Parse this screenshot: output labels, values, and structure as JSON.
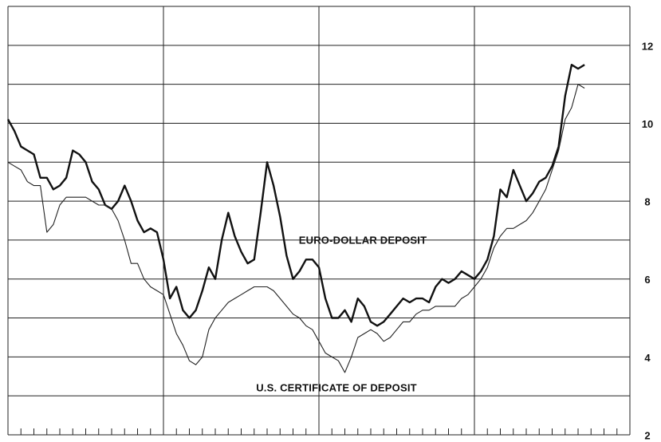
{
  "chart_data": {
    "type": "line",
    "x": [
      0,
      0.5,
      1,
      1.5,
      2,
      2.5,
      3,
      3.5,
      4,
      4.5,
      5,
      5.5,
      6,
      6.5,
      7,
      7.5,
      8,
      8.5,
      9,
      9.5,
      10,
      10.5,
      11,
      11.5,
      12,
      12.5,
      13,
      13.5,
      14,
      14.5,
      15,
      15.5,
      16,
      16.5,
      17,
      17.5,
      18,
      18.5,
      19,
      19.5,
      20,
      20.5,
      21,
      21.5,
      22,
      22.5,
      23,
      23.5,
      24,
      24.5,
      25,
      25.5,
      26,
      26.5,
      27,
      27.5,
      28,
      28.5,
      29,
      29.5,
      30,
      30.5,
      31,
      31.5,
      32,
      32.5,
      33,
      33.5,
      34,
      34.5,
      35,
      35.5,
      36,
      36.5,
      37,
      37.5,
      38,
      38.5,
      39,
      39.5,
      40,
      40.5,
      41,
      41.5,
      42,
      42.5,
      43,
      43.5,
      44,
      44.5
    ],
    "series": [
      {
        "name": "EURO-DOLLAR DEPOSIT",
        "color": "#111111",
        "width": 2.4,
        "values": [
          10.1,
          9.8,
          9.4,
          9.3,
          9.2,
          8.6,
          8.6,
          8.3,
          8.4,
          8.6,
          9.3,
          9.2,
          9.0,
          8.5,
          8.3,
          7.9,
          7.8,
          8.0,
          8.4,
          8.0,
          7.5,
          7.2,
          7.3,
          7.2,
          6.5,
          5.5,
          5.8,
          5.2,
          5.0,
          5.2,
          5.7,
          6.3,
          6.0,
          7.0,
          7.7,
          7.1,
          6.7,
          6.4,
          6.5,
          7.7,
          9.0,
          8.4,
          7.6,
          6.6,
          6.0,
          6.2,
          6.5,
          6.5,
          6.3,
          5.5,
          5.0,
          5.0,
          5.2,
          4.9,
          5.5,
          5.3,
          4.9,
          4.8,
          4.9,
          5.1,
          5.3,
          5.5,
          5.4,
          5.5,
          5.5,
          5.4,
          5.8,
          6.0,
          5.9,
          6.0,
          6.2,
          6.1,
          6.0,
          6.2,
          6.5,
          7.1,
          8.3,
          8.1,
          8.8,
          8.4,
          8.0,
          8.2,
          8.5,
          8.6,
          8.9,
          9.4,
          10.7,
          11.5,
          11.4,
          11.5
        ]
      },
      {
        "name": "U.S. CERTIFICATE OF DEPOSIT",
        "color": "#222222",
        "width": 1.1,
        "values": [
          9.0,
          8.9,
          8.8,
          8.5,
          8.4,
          8.4,
          7.2,
          7.4,
          7.9,
          8.1,
          8.1,
          8.1,
          8.1,
          8.0,
          7.9,
          7.9,
          7.8,
          7.5,
          7.0,
          6.4,
          6.4,
          6.0,
          5.8,
          5.7,
          5.6,
          5.1,
          4.6,
          4.3,
          3.9,
          3.8,
          4.0,
          4.7,
          5.0,
          5.2,
          5.4,
          5.5,
          5.6,
          5.7,
          5.8,
          5.8,
          5.8,
          5.7,
          5.5,
          5.3,
          5.1,
          5.0,
          4.8,
          4.7,
          4.4,
          4.1,
          4.0,
          3.9,
          3.6,
          4.0,
          4.5,
          4.6,
          4.7,
          4.6,
          4.4,
          4.5,
          4.7,
          4.9,
          4.9,
          5.1,
          5.2,
          5.2,
          5.3,
          5.3,
          5.3,
          5.3,
          5.5,
          5.6,
          5.8,
          6.0,
          6.3,
          6.8,
          7.1,
          7.3,
          7.3,
          7.4,
          7.5,
          7.7,
          8.0,
          8.3,
          8.8,
          9.3,
          10.1,
          10.4,
          11.0,
          10.9
        ]
      }
    ],
    "xlim": [
      0,
      48
    ],
    "xticks": [
      0,
      1,
      2,
      3,
      4,
      5,
      6,
      7,
      8,
      9,
      10,
      11,
      12,
      13,
      14,
      15,
      16,
      17,
      18,
      19,
      20,
      21,
      22,
      23,
      24,
      25,
      26,
      27,
      28,
      29,
      30,
      31,
      32,
      33,
      34,
      35,
      36,
      37,
      38,
      39,
      40,
      41,
      42,
      43,
      44,
      45,
      46,
      47,
      48
    ],
    "xgrid": [
      0,
      12,
      24,
      36,
      48
    ],
    "ylim": [
      2,
      13
    ],
    "yticks": [
      2,
      4,
      6,
      8,
      10,
      12
    ],
    "ygrid": [
      2,
      3,
      4,
      5,
      6,
      7,
      8,
      9,
      10,
      11,
      12,
      13
    ]
  }
}
